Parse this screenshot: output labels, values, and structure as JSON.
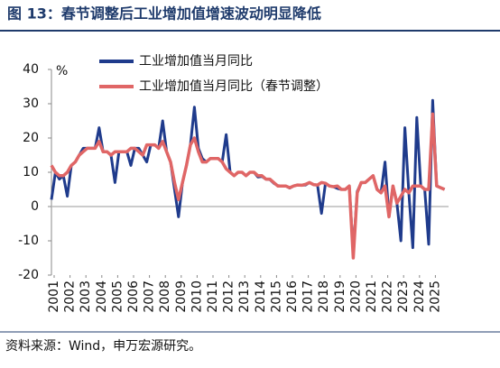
{
  "chart_data": {
    "type": "line",
    "title": "图 13：春节调整后工业增加值增速波动明显降低",
    "y_unit": "%",
    "source": "资料来源：Wind，申万宏源研究。",
    "x": [
      2001,
      2001.25,
      2001.5,
      2001.75,
      2002,
      2002.25,
      2002.5,
      2002.75,
      2003,
      2003.25,
      2003.5,
      2003.75,
      2004,
      2004.25,
      2004.5,
      2004.75,
      2005,
      2005.25,
      2005.5,
      2005.75,
      2006,
      2006.25,
      2006.5,
      2006.75,
      2007,
      2007.25,
      2007.5,
      2007.75,
      2008,
      2008.25,
      2008.5,
      2008.75,
      2009,
      2009.25,
      2009.5,
      2009.75,
      2010,
      2010.25,
      2010.5,
      2010.75,
      2011,
      2011.25,
      2011.5,
      2011.75,
      2012,
      2012.25,
      2012.5,
      2012.75,
      2013,
      2013.25,
      2013.5,
      2013.75,
      2014,
      2014.25,
      2014.5,
      2014.75,
      2015,
      2015.25,
      2015.5,
      2015.75,
      2016,
      2016.25,
      2016.5,
      2016.75,
      2017,
      2017.25,
      2017.5,
      2017.75,
      2018,
      2018.25,
      2018.5,
      2018.75,
      2019,
      2019.25,
      2019.5,
      2019.75,
      2020,
      2020.25,
      2020.5,
      2020.75,
      2021,
      2021.25,
      2021.5,
      2021.75,
      2022,
      2022.25,
      2022.5,
      2022.75,
      2023,
      2023.25,
      2023.5,
      2023.75,
      2024,
      2024.25,
      2024.5,
      2024.75,
      2025,
      2025.25,
      2025.5,
      2025.75
    ],
    "series": [
      {
        "name": "工业增加值当月同比",
        "color": "#1f3b8c",
        "values": [
          2,
          10,
          8,
          9,
          3,
          12,
          13,
          15,
          17,
          17,
          17,
          17,
          23,
          16,
          16,
          15,
          7,
          16,
          16,
          16,
          12,
          17,
          17,
          15,
          13,
          18,
          18,
          17,
          25,
          16,
          13,
          5,
          -3,
          7,
          12,
          18,
          29,
          17,
          14,
          13,
          14,
          14,
          14,
          13,
          21,
          10,
          9,
          10,
          10,
          9,
          10,
          10,
          8.6,
          8.8,
          8,
          7.9,
          6.8,
          6.1,
          6,
          6,
          5.4,
          6,
          6.3,
          6.2,
          6.3,
          7,
          6.4,
          6.3,
          -2,
          6.8,
          6,
          5.8,
          5.3,
          5,
          5,
          6,
          -13.5,
          4.4,
          6.9,
          7,
          8,
          9,
          5,
          4,
          13,
          -3,
          6,
          1,
          -10,
          23,
          4,
          -12,
          26,
          6,
          5,
          -11,
          31,
          6,
          5.5,
          5
        ]
      },
      {
        "name": "工业增加值当月同比（春节调整）",
        "color": "#e06666",
        "values": [
          12,
          10,
          9,
          9,
          10,
          12,
          13,
          15,
          16,
          17,
          17,
          17,
          19,
          16,
          16,
          15,
          16,
          16,
          16,
          16,
          17,
          17,
          16,
          15,
          18,
          18,
          18,
          17,
          19,
          16,
          13,
          7,
          2,
          7,
          12,
          18,
          20,
          16,
          13,
          13,
          14,
          14,
          14,
          13,
          11,
          10,
          9,
          10,
          10,
          9,
          10,
          10,
          9,
          9,
          8,
          8,
          7,
          6,
          6,
          6,
          5.5,
          6,
          6.3,
          6.2,
          6.5,
          7,
          6.4,
          6.3,
          7,
          6.8,
          6,
          5.8,
          6,
          5,
          5,
          6,
          -15,
          4,
          7,
          7,
          8,
          9,
          5,
          4,
          6,
          -3,
          6,
          1,
          3,
          5,
          4,
          6,
          6,
          6,
          5,
          5,
          27,
          6,
          5.5,
          5
        ]
      }
    ],
    "xlim": [
      2001,
      2026
    ],
    "xticks": [
      2001,
      2002,
      2003,
      2004,
      2005,
      2006,
      2007,
      2008,
      2009,
      2010,
      2011,
      2012,
      2013,
      2014,
      2015,
      2016,
      2017,
      2018,
      2019,
      2020,
      2021,
      2022,
      2023,
      2024,
      2025
    ],
    "ylim": [
      -20,
      40
    ],
    "yticks": [
      -20,
      -10,
      0,
      10,
      20,
      30,
      40
    ],
    "legend": "top"
  }
}
